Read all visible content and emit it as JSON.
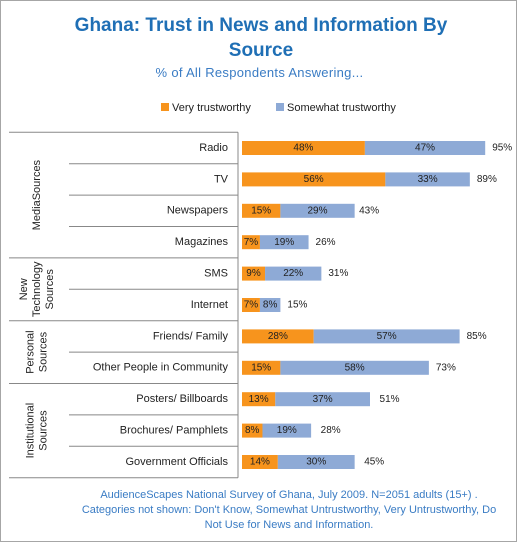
{
  "chart_data": {
    "type": "stacked-bar",
    "title": "Ghana: Trust in News and Information By Source",
    "subtitle": "% of All Respondents Answering...",
    "groups": [
      {
        "name": [
          "MediaSources"
        ],
        "categories": [
          "Radio",
          "TV",
          "Newspapers",
          "Magazines"
        ]
      },
      {
        "name": [
          "New",
          "Technology",
          "Sources"
        ],
        "categories": [
          "SMS",
          "Internet"
        ]
      },
      {
        "name": [
          "Personal",
          "Sources"
        ],
        "categories": [
          "Friends/ Family",
          "Other People in Community"
        ]
      },
      {
        "name": [
          "Institutional",
          "Sources"
        ],
        "categories": [
          "Posters/ Billboards",
          "Brochures/ Pamphlets",
          "Government Officials"
        ]
      }
    ],
    "series": [
      {
        "name": "Very trustworthy",
        "color": "#f7941d",
        "values": [
          48,
          56,
          15,
          7,
          9,
          7,
          28,
          15,
          13,
          8,
          14
        ],
        "value_labels": [
          "48%",
          "56%",
          "15%",
          "7%",
          "9%",
          "7%",
          "28%",
          "15%",
          "13%",
          "8%",
          "14%"
        ]
      },
      {
        "name": "Somewhat trustworthy",
        "color": "#8eaad6",
        "values": [
          47,
          33,
          29,
          19,
          22,
          8,
          57,
          58,
          37,
          19,
          30
        ],
        "value_labels": [
          "47%",
          "33%",
          "29%",
          "19%",
          "22%",
          "8%",
          "57%",
          "58%",
          "37%",
          "19%",
          "30%"
        ]
      }
    ],
    "totals": [
      95,
      89,
      43,
      26,
      31,
      15,
      85,
      73,
      51,
      28,
      45
    ],
    "total_labels": [
      "95%",
      "89%",
      "43%",
      "26%",
      "31%",
      "15%",
      "85%",
      "73%",
      "51%",
      "28%",
      "45%"
    ],
    "footnote": "AudienceScapes National Survey of Ghana, July 2009. N=2051 adults (15+) . Categories  not shown: Don't Know, Somewhat Untrustworthy, Very Untrustworthy, Do Not Use for News and Information."
  }
}
